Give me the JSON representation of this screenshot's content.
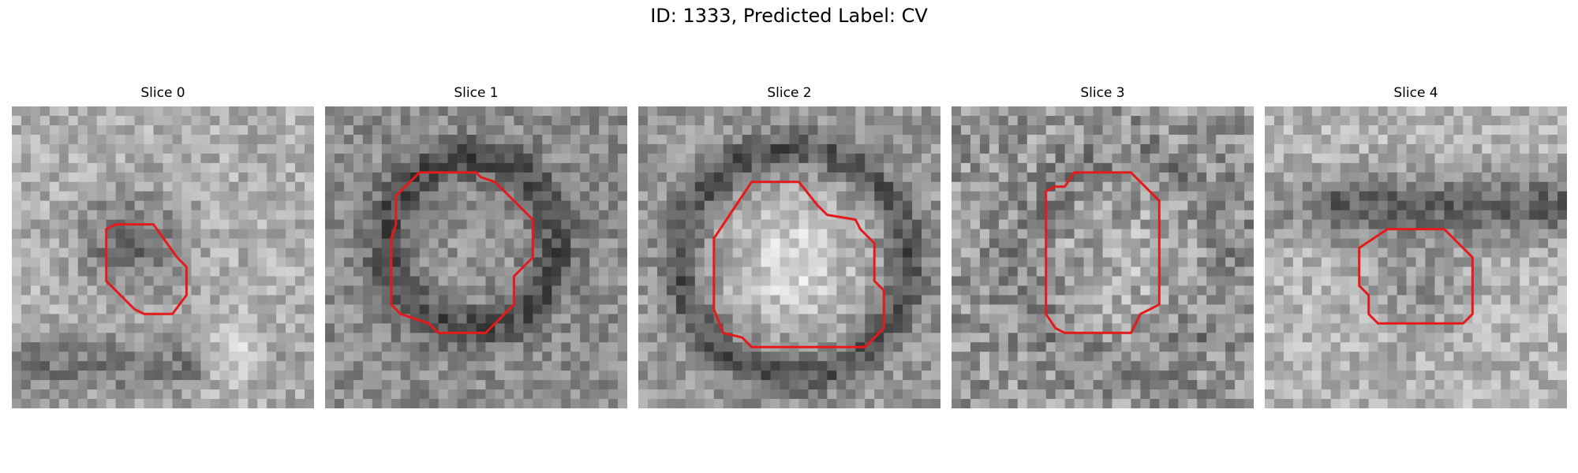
{
  "figure": {
    "title": "ID: 1333, Predicted Label: CV"
  },
  "panels": [
    {
      "title": "Slice 0",
      "seed": 11,
      "pattern": "dark-blob",
      "outline_color": "#e41a1c"
    },
    {
      "title": "Slice 1",
      "seed": 23,
      "pattern": "dark-ring",
      "outline_color": "#e41a1c"
    },
    {
      "title": "Slice 2",
      "seed": 37,
      "pattern": "bright-disk",
      "outline_color": "#e41a1c"
    },
    {
      "title": "Slice 3",
      "seed": 51,
      "pattern": "noisy-light",
      "outline_color": "#e41a1c"
    },
    {
      "title": "Slice 4",
      "seed": 67,
      "pattern": "dark-band",
      "outline_color": "#e41a1c"
    }
  ]
}
